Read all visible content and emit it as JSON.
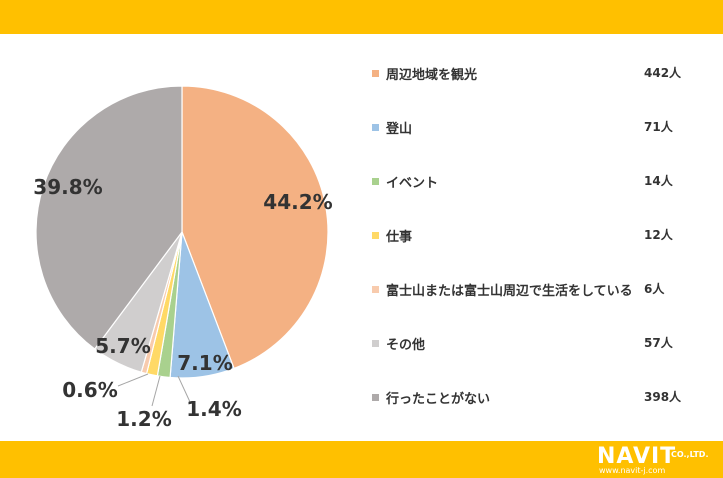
{
  "theme": {
    "band_color": "#FFC000",
    "text_color": "#333333"
  },
  "chart_data": {
    "type": "pie",
    "title": "",
    "slices": [
      {
        "label": "周辺地域を観光",
        "count": "442人",
        "percent": 44.2,
        "percent_label": "44.2%",
        "color": "#F4B183"
      },
      {
        "label": "登山",
        "count": "71人",
        "percent": 7.1,
        "percent_label": "7.1%",
        "color": "#9DC3E6"
      },
      {
        "label": "イベント",
        "count": "14人",
        "percent": 1.4,
        "percent_label": "1.4%",
        "color": "#A9D18E"
      },
      {
        "label": "仕事",
        "count": "12人",
        "percent": 1.2,
        "percent_label": "1.2%",
        "color": "#FFD966"
      },
      {
        "label": "富士山または富士山周辺で生活をしている",
        "count": "6人",
        "percent": 0.6,
        "percent_label": "0.6%",
        "color": "#F8CBAD"
      },
      {
        "label": "その他",
        "count": "57人",
        "percent": 5.7,
        "percent_label": "5.7%",
        "color": "#D0CECE"
      },
      {
        "label": "行ったことがない",
        "count": "398人",
        "percent": 39.8,
        "percent_label": "39.8%",
        "color": "#AEAAAA"
      }
    ],
    "legend_position": "right"
  },
  "brand": {
    "name": "NAVIT",
    "suffix": "CO.,LTD.",
    "url": "www.navit-j.com"
  }
}
